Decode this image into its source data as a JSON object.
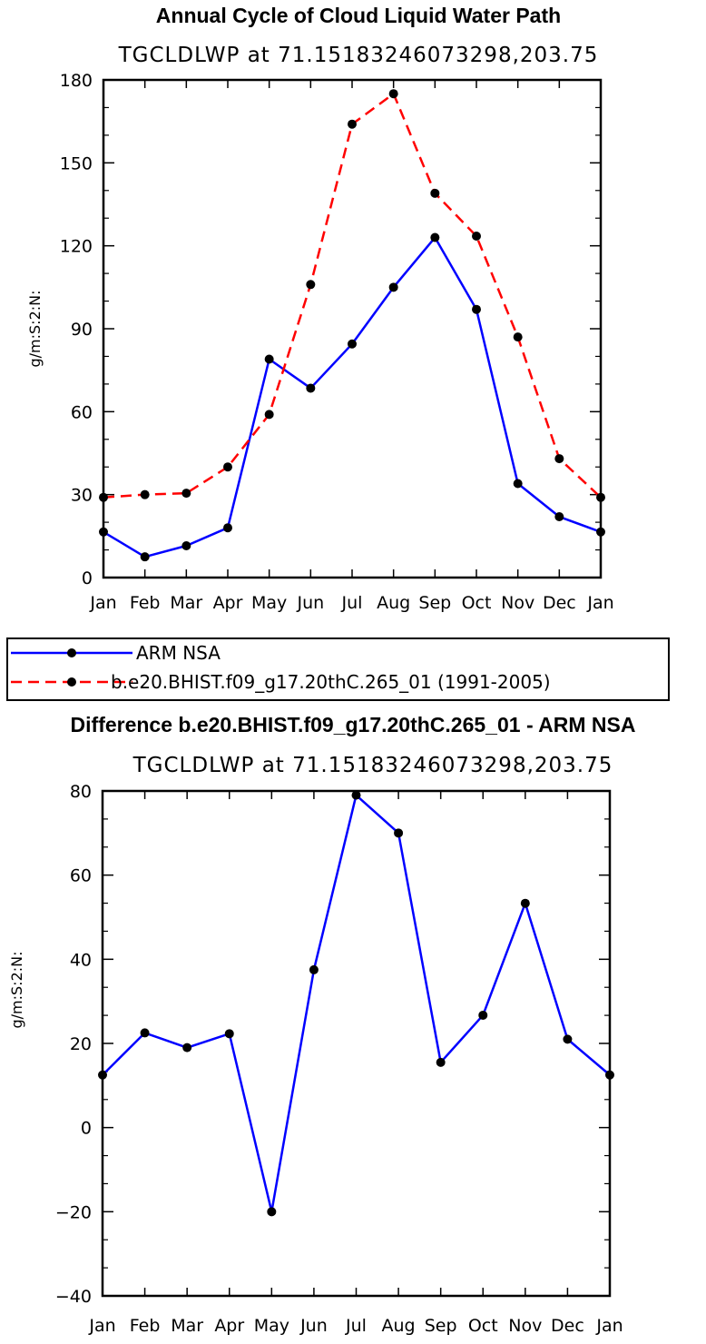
{
  "chart_data": [
    {
      "type": "line",
      "title": "Annual Cycle of Cloud Liquid Water Path",
      "subtitle": "TGCLDLWP  at  71.15183246073298,203.75",
      "ylabel": "g/m:S:2:N:",
      "xlabel": "",
      "categories": [
        "Jan",
        "Feb",
        "Mar",
        "Apr",
        "May",
        "Jun",
        "Jul",
        "Aug",
        "Sep",
        "Oct",
        "Nov",
        "Dec",
        "Jan"
      ],
      "ylim": [
        0,
        180
      ],
      "yticks": [
        0,
        30,
        60,
        90,
        120,
        150,
        180
      ],
      "series": [
        {
          "name": "ARM  NSA",
          "color": "#0000ff",
          "dash": "solid",
          "values": [
            16.5,
            7.5,
            11.5,
            18,
            79,
            68.5,
            84.5,
            105,
            123,
            97,
            34,
            22,
            16.5
          ]
        },
        {
          "name": "b.e20.BHIST.f09_g17.20thC.265_01  (1991-2005)",
          "color": "#ff0000",
          "dash": "dashed",
          "values": [
            29,
            30,
            30.5,
            40,
            59,
            106,
            164,
            175,
            139,
            123.5,
            87,
            43,
            29
          ]
        }
      ],
      "legend": "below"
    },
    {
      "type": "line",
      "title": "Difference b.e20.BHIST.f09_g17.20thC.265_01 - ARM NSA",
      "subtitle": "TGCLDLWP  at  71.15183246073298,203.75",
      "ylabel": "g/m:S:2:N:",
      "xlabel": "",
      "categories": [
        "Jan",
        "Feb",
        "Mar",
        "Apr",
        "May",
        "Jun",
        "Jul",
        "Aug",
        "Sep",
        "Oct",
        "Nov",
        "Dec",
        "Jan"
      ],
      "ylim": [
        -40,
        80
      ],
      "yticks": [
        -40,
        -20,
        0,
        20,
        40,
        60,
        80
      ],
      "series": [
        {
          "name": "Difference",
          "color": "#0000ff",
          "dash": "solid",
          "values": [
            12.5,
            22.5,
            19,
            22.3,
            -20,
            37.5,
            79,
            70,
            15.5,
            26.7,
            53.3,
            21,
            12.5
          ]
        }
      ]
    }
  ]
}
